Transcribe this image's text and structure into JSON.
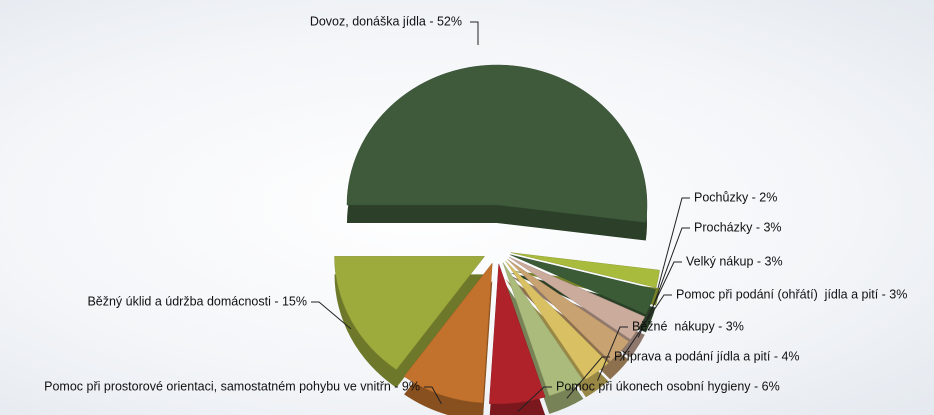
{
  "chart_data": {
    "type": "pie",
    "categories": [
      "Dovoz, donáška jídla - 52%",
      "Pochůzky - 2%",
      "Procházky - 3%",
      "Velký nákup - 3%",
      "Pomoc při podání (ohřátí)  jídla a pití - 3%",
      "Běžné  nákupy - 3%",
      "Příprava a podání jídla a pití - 4%",
      "Pomoc při úkonech osobní hygieny - 6%",
      "Pomoc při prostorové orientaci, samostatném pohybu ve vnitřn - 9%",
      "Běžný úklid a údržba domácnosti - 15%"
    ],
    "values": [
      52,
      2,
      3,
      3,
      3,
      3,
      4,
      6,
      9,
      15
    ],
    "colors": [
      "#3e5a3b",
      "#a9bb3c",
      "#3b5b36",
      "#cbab9c",
      "#c9a271",
      "#d9c163",
      "#aabb7b",
      "#b0222a",
      "#c2722c",
      "#9dab3c"
    ]
  }
}
